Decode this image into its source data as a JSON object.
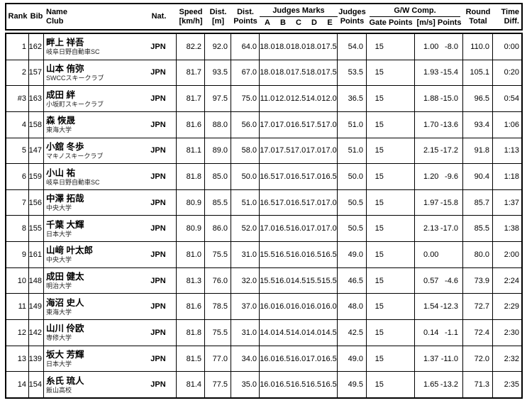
{
  "header": {
    "rank": "Rank",
    "bib": "Bib",
    "name": "Name",
    "club": "Club",
    "nat": "Nat.",
    "speed1": "Speed",
    "speed2": "[km/h]",
    "dist1": "Dist.",
    "dist2": "[m]",
    "dpts1": "Dist.",
    "dpts2": "Points",
    "judges_marks": "Judges Marks",
    "judge_letters": [
      "A",
      "B",
      "C",
      "D",
      "E"
    ],
    "jpts1": "Judges",
    "jpts2": "Points",
    "gw": "G/W Comp.",
    "gate_points": "Gate Points",
    "ms_points": "[m/s] Points",
    "round1": "Round",
    "round2": "Total",
    "time1": "Time",
    "time2": "Diff."
  },
  "rows": [
    {
      "rank": "1",
      "bib": "162",
      "name": "畔上 祥吾",
      "club": "岐阜日野自動車SC",
      "nat": "JPN",
      "speed": "82.2",
      "dist": "92.0",
      "dist_points": "64.0",
      "marks": [
        "18.0",
        "18.0",
        "18.0",
        "18.0",
        "17.5"
      ],
      "judges_points": "54.0",
      "gate": "15",
      "gate_points": "",
      "ms": "1.00",
      "ms_pts": "-8.0",
      "round_total": "110.0",
      "time_diff": "0:00"
    },
    {
      "rank": "2",
      "bib": "157",
      "name": "山本 侑弥",
      "club": "SWCCスキークラブ",
      "nat": "JPN",
      "speed": "81.7",
      "dist": "93.5",
      "dist_points": "67.0",
      "marks": [
        "18.0",
        "18.0",
        "17.5",
        "18.0",
        "17.5"
      ],
      "judges_points": "53.5",
      "gate": "15",
      "gate_points": "",
      "ms": "1.93",
      "ms_pts": "-15.4",
      "round_total": "105.1",
      "time_diff": "0:20"
    },
    {
      "rank": "#3",
      "bib": "163",
      "name": "成田 絆",
      "club": "小坂町スキークラブ",
      "nat": "JPN",
      "speed": "81.7",
      "dist": "97.5",
      "dist_points": "75.0",
      "marks": [
        "11.0",
        "12.0",
        "12.5",
        "14.0",
        "12.0"
      ],
      "judges_points": "36.5",
      "gate": "15",
      "gate_points": "",
      "ms": "1.88",
      "ms_pts": "-15.0",
      "round_total": "96.5",
      "time_diff": "0:54"
    },
    {
      "rank": "4",
      "bib": "158",
      "name": "森 恢晟",
      "club": "東海大学",
      "nat": "JPN",
      "speed": "81.6",
      "dist": "88.0",
      "dist_points": "56.0",
      "marks": [
        "17.0",
        "17.0",
        "16.5",
        "17.5",
        "17.0"
      ],
      "judges_points": "51.0",
      "gate": "15",
      "gate_points": "",
      "ms": "1.70",
      "ms_pts": "-13.6",
      "round_total": "93.4",
      "time_diff": "1:06"
    },
    {
      "rank": "5",
      "bib": "147",
      "name": "小舘 冬歩",
      "club": "マキノスキークラブ",
      "nat": "JPN",
      "speed": "81.1",
      "dist": "89.0",
      "dist_points": "58.0",
      "marks": [
        "17.0",
        "17.5",
        "17.0",
        "17.0",
        "17.0"
      ],
      "judges_points": "51.0",
      "gate": "15",
      "gate_points": "",
      "ms": "2.15",
      "ms_pts": "-17.2",
      "round_total": "91.8",
      "time_diff": "1:13"
    },
    {
      "rank": "6",
      "bib": "159",
      "name": "小山 祐",
      "club": "岐阜日野自動車SC",
      "nat": "JPN",
      "speed": "81.8",
      "dist": "85.0",
      "dist_points": "50.0",
      "marks": [
        "16.5",
        "17.0",
        "16.5",
        "17.0",
        "16.5"
      ],
      "judges_points": "50.0",
      "gate": "15",
      "gate_points": "",
      "ms": "1.20",
      "ms_pts": "-9.6",
      "round_total": "90.4",
      "time_diff": "1:18"
    },
    {
      "rank": "7",
      "bib": "156",
      "name": "中澤 拓哉",
      "club": "中央大学",
      "nat": "JPN",
      "speed": "80.9",
      "dist": "85.5",
      "dist_points": "51.0",
      "marks": [
        "16.5",
        "17.0",
        "16.5",
        "17.0",
        "17.0"
      ],
      "judges_points": "50.5",
      "gate": "15",
      "gate_points": "",
      "ms": "1.97",
      "ms_pts": "-15.8",
      "round_total": "85.7",
      "time_diff": "1:37"
    },
    {
      "rank": "8",
      "bib": "155",
      "name": "千葉 大輝",
      "club": "日本大学",
      "nat": "JPN",
      "speed": "80.9",
      "dist": "86.0",
      "dist_points": "52.0",
      "marks": [
        "17.0",
        "16.5",
        "16.0",
        "17.0",
        "17.0"
      ],
      "judges_points": "50.5",
      "gate": "15",
      "gate_points": "",
      "ms": "2.13",
      "ms_pts": "-17.0",
      "round_total": "85.5",
      "time_diff": "1:38"
    },
    {
      "rank": "9",
      "bib": "161",
      "name": "山﨑 叶太郎",
      "club": "中央大学",
      "nat": "JPN",
      "speed": "81.0",
      "dist": "75.5",
      "dist_points": "31.0",
      "marks": [
        "15.5",
        "16.5",
        "16.0",
        "16.5",
        "16.5"
      ],
      "judges_points": "49.0",
      "gate": "15",
      "gate_points": "",
      "ms": "0.00",
      "ms_pts": "",
      "round_total": "80.0",
      "time_diff": "2:00"
    },
    {
      "rank": "10",
      "bib": "148",
      "name": "成田 健太",
      "club": "明治大学",
      "nat": "JPN",
      "speed": "81.3",
      "dist": "76.0",
      "dist_points": "32.0",
      "marks": [
        "15.5",
        "16.0",
        "14.5",
        "15.5",
        "15.5"
      ],
      "judges_points": "46.5",
      "gate": "15",
      "gate_points": "",
      "ms": "0.57",
      "ms_pts": "-4.6",
      "round_total": "73.9",
      "time_diff": "2:24"
    },
    {
      "rank": "11",
      "bib": "149",
      "name": "海沼 史人",
      "club": "東海大学",
      "nat": "JPN",
      "speed": "81.6",
      "dist": "78.5",
      "dist_points": "37.0",
      "marks": [
        "16.0",
        "16.0",
        "16.0",
        "16.0",
        "16.0"
      ],
      "judges_points": "48.0",
      "gate": "15",
      "gate_points": "",
      "ms": "1.54",
      "ms_pts": "-12.3",
      "round_total": "72.7",
      "time_diff": "2:29"
    },
    {
      "rank": "12",
      "bib": "142",
      "name": "山川 伶欧",
      "club": "専修大学",
      "nat": "JPN",
      "speed": "81.8",
      "dist": "75.5",
      "dist_points": "31.0",
      "marks": [
        "14.0",
        "14.5",
        "14.0",
        "14.0",
        "14.5"
      ],
      "judges_points": "42.5",
      "gate": "15",
      "gate_points": "",
      "ms": "0.14",
      "ms_pts": "-1.1",
      "round_total": "72.4",
      "time_diff": "2:30"
    },
    {
      "rank": "13",
      "bib": "139",
      "name": "坂大 芳輝",
      "club": "日本大学",
      "nat": "JPN",
      "speed": "81.5",
      "dist": "77.0",
      "dist_points": "34.0",
      "marks": [
        "16.0",
        "16.5",
        "16.0",
        "17.0",
        "16.5"
      ],
      "judges_points": "49.0",
      "gate": "15",
      "gate_points": "",
      "ms": "1.37",
      "ms_pts": "-11.0",
      "round_total": "72.0",
      "time_diff": "2:32"
    },
    {
      "rank": "14",
      "bib": "154",
      "name": "糸氏 琉人",
      "club": "飯山高校",
      "nat": "JPN",
      "speed": "81.4",
      "dist": "77.5",
      "dist_points": "35.0",
      "marks": [
        "16.0",
        "16.5",
        "16.5",
        "16.5",
        "16.5"
      ],
      "judges_points": "49.5",
      "gate": "15",
      "gate_points": "",
      "ms": "1.65",
      "ms_pts": "-13.2",
      "round_total": "71.3",
      "time_diff": "2:35"
    }
  ]
}
